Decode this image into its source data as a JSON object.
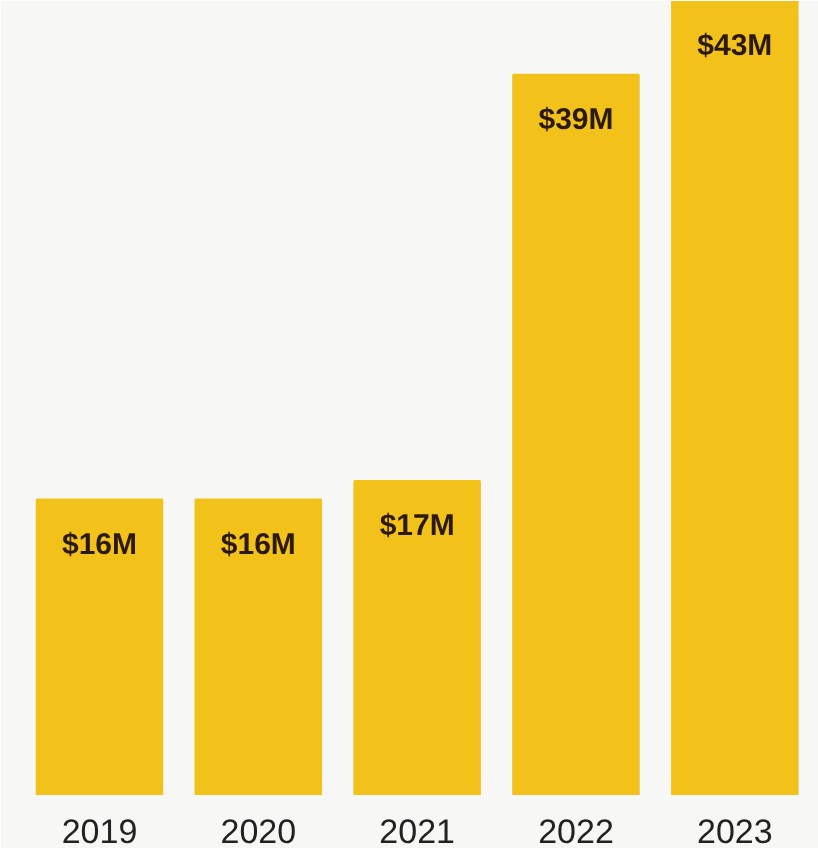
{
  "chart_data": {
    "type": "bar",
    "categories": [
      "2019",
      "2020",
      "2021",
      "2022",
      "2023"
    ],
    "values": [
      16,
      16,
      17,
      39,
      43
    ],
    "value_labels": [
      "$16M",
      "$16M",
      "$17M",
      "$39M",
      "$43M"
    ],
    "color": "#f2c21b"
  }
}
